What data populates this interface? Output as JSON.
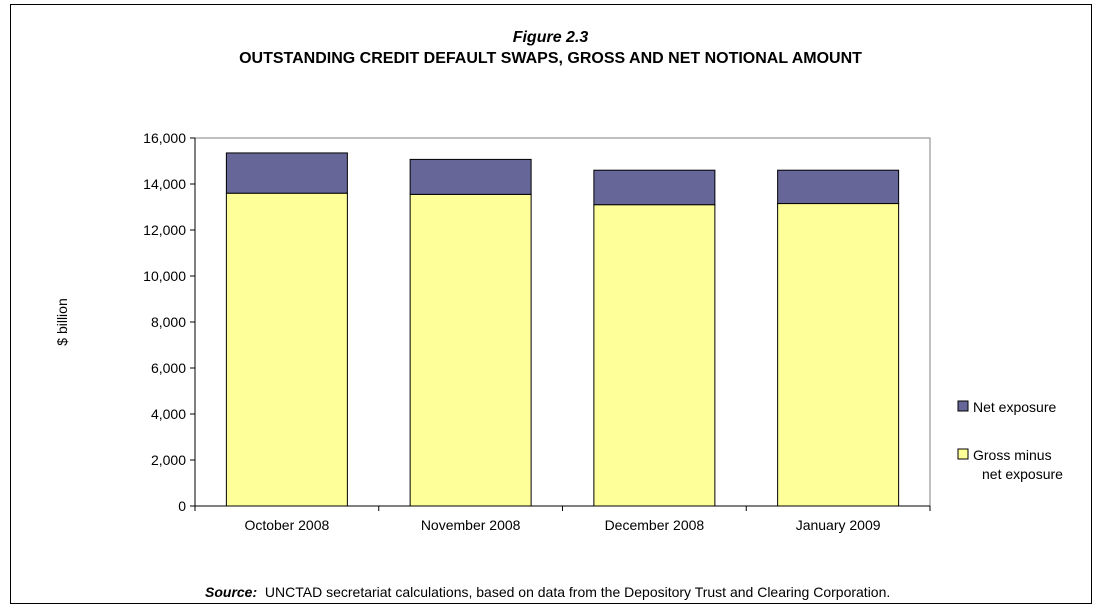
{
  "figure": {
    "number": "Figure 2.3",
    "title": "OUTSTANDING CREDIT DEFAULT SWAPS, GROSS AND NET NOTIONAL AMOUNT",
    "source_label": "Source:",
    "source_text": "UNCTAD secretariat calculations, based on data from the Depository Trust and Clearing Corporation."
  },
  "chart_data": {
    "type": "bar",
    "stacked": true,
    "categories": [
      "October 2008",
      "November 2008",
      "December 2008",
      "January 2009"
    ],
    "series": [
      {
        "name": "Gross minus net exposure",
        "values": [
          13600,
          13550,
          13100,
          13150
        ],
        "color": "#ffff99"
      },
      {
        "name": "Net exposure",
        "values": [
          1750,
          1520,
          1500,
          1450
        ],
        "color": "#666699"
      }
    ],
    "legend_order": [
      1,
      0
    ],
    "legend_position": "right",
    "ylabel": "$ billion",
    "xlabel": "",
    "ylim": [
      0,
      16000
    ],
    "yticks": [
      0,
      2000,
      4000,
      6000,
      8000,
      10000,
      12000,
      14000,
      16000
    ],
    "ytick_labels": [
      "0",
      "2,000",
      "4,000",
      "6,000",
      "8,000",
      "10,000",
      "12,000",
      "14,000",
      "16,000"
    ],
    "grid": false
  }
}
